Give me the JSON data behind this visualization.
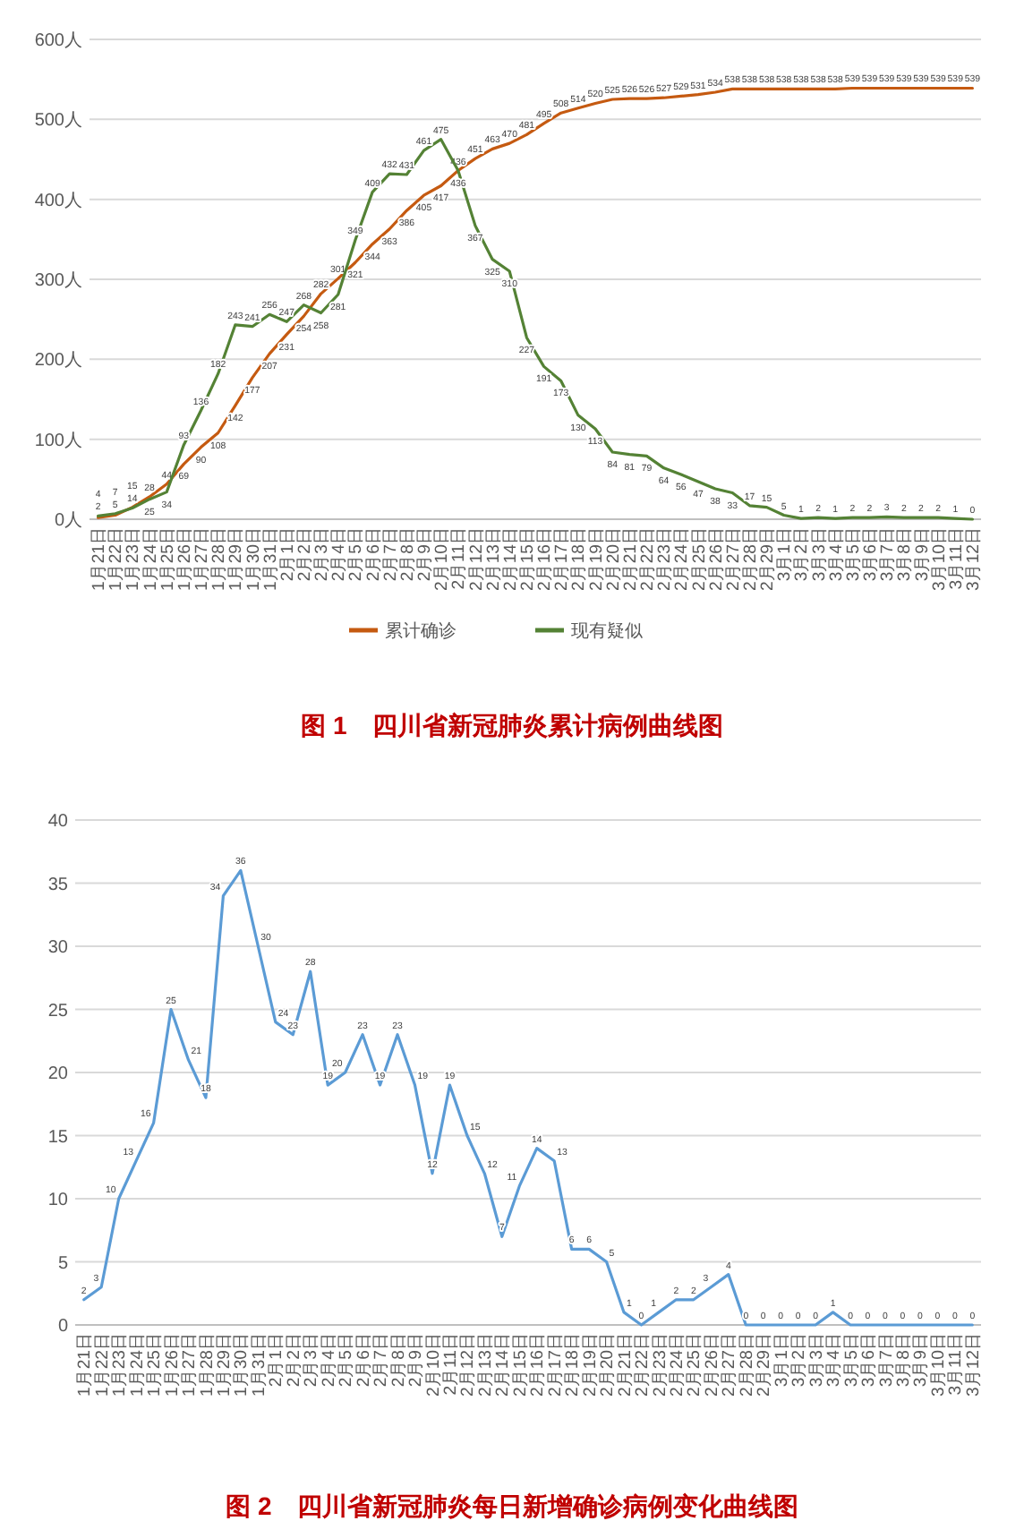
{
  "chart_data": [
    {
      "type": "line",
      "title": "图 1　四川省新冠肺炎累计病例曲线图",
      "categories": [
        "1月21日",
        "1月22日",
        "1月23日",
        "1月24日",
        "1月25日",
        "1月26日",
        "1月27日",
        "1月28日",
        "1月29日",
        "1月30日",
        "1月31日",
        "2月1日",
        "2月2日",
        "2月3日",
        "2月4日",
        "2月5日",
        "2月6日",
        "2月7日",
        "2月8日",
        "2月9日",
        "2月10日",
        "2月11日",
        "2月12日",
        "2月13日",
        "2月14日",
        "2月15日",
        "2月16日",
        "2月17日",
        "2月18日",
        "2月19日",
        "2月20日",
        "2月21日",
        "2月22日",
        "2月23日",
        "2月24日",
        "2月25日",
        "2月26日",
        "2月27日",
        "2月28日",
        "2月29日",
        "3月1日",
        "3月2日",
        "3月3日",
        "3月4日",
        "3月5日",
        "3月6日",
        "3月7日",
        "3月8日",
        "3月9日",
        "3月10日",
        "3月11日",
        "3月12日"
      ],
      "series": [
        {
          "name": "累计确诊",
          "color": "#c55a11",
          "values": [
            2,
            5,
            15,
            28,
            44,
            69,
            90,
            108,
            142,
            177,
            207,
            231,
            254,
            282,
            301,
            321,
            344,
            363,
            386,
            405,
            417,
            436,
            451,
            463,
            470,
            481,
            495,
            508,
            514,
            520,
            525,
            526,
            526,
            527,
            529,
            531,
            534,
            538,
            538,
            538,
            538,
            538,
            538,
            538,
            539,
            539,
            539,
            539,
            539,
            539,
            539,
            539
          ]
        },
        {
          "name": "现有疑似",
          "color": "#548235",
          "values": [
            4,
            7,
            14,
            25,
            34,
            93,
            136,
            182,
            243,
            241,
            256,
            247,
            268,
            258,
            281,
            349,
            409,
            432,
            431,
            461,
            475,
            436,
            367,
            325,
            310,
            227,
            191,
            173,
            130,
            113,
            84,
            81,
            79,
            64,
            56,
            47,
            38,
            33,
            17,
            15,
            5,
            1,
            2,
            1,
            2,
            2,
            3,
            2,
            2,
            2,
            1,
            0
          ]
        }
      ],
      "ylim": [
        0,
        600
      ],
      "yticks": [
        {
          "value": 0,
          "label": "0人"
        },
        {
          "value": 100,
          "label": "100人"
        },
        {
          "value": 200,
          "label": "200人"
        },
        {
          "value": 300,
          "label": "300人"
        },
        {
          "value": 400,
          "label": "400人"
        },
        {
          "value": 500,
          "label": "500人"
        },
        {
          "value": 600,
          "label": "600人"
        }
      ],
      "grid": "y",
      "legend": "bottom",
      "data_labels": true
    },
    {
      "type": "line",
      "title": "图 2　四川省新冠肺炎每日新增确诊病例变化曲线图",
      "categories": [
        "1月21日",
        "1月22日",
        "1月23日",
        "1月24日",
        "1月25日",
        "1月26日",
        "1月27日",
        "1月28日",
        "1月29日",
        "1月30日",
        "1月31日",
        "2月1日",
        "2月2日",
        "2月3日",
        "2月4日",
        "2月5日",
        "2月6日",
        "2月7日",
        "2月8日",
        "2月9日",
        "2月10日",
        "2月11日",
        "2月12日",
        "2月13日",
        "2月14日",
        "2月15日",
        "2月16日",
        "2月17日",
        "2月18日",
        "2月19日",
        "2月20日",
        "2月21日",
        "2月22日",
        "2月23日",
        "2月24日",
        "2月25日",
        "2月26日",
        "2月27日",
        "2月28日",
        "2月29日",
        "3月1日",
        "3月2日",
        "3月3日",
        "3月4日",
        "3月5日",
        "3月6日",
        "3月7日",
        "3月8日",
        "3月9日",
        "3月10日",
        "3月11日",
        "3月12日"
      ],
      "series": [
        {
          "color": "#5b9bd5",
          "values": [
            2,
            3,
            10,
            13,
            16,
            25,
            21,
            18,
            34,
            36,
            30,
            24,
            23,
            28,
            19,
            20,
            23,
            19,
            23,
            19,
            12,
            19,
            15,
            12,
            7,
            11,
            14,
            13,
            6,
            6,
            5,
            1,
            0,
            1,
            2,
            2,
            3,
            4,
            0,
            0,
            0,
            0,
            0,
            1,
            0,
            0,
            0,
            0,
            0,
            0,
            0,
            0
          ]
        }
      ],
      "ylim": [
        0,
        40
      ],
      "yticks": [
        0,
        5,
        10,
        15,
        20,
        25,
        30,
        35,
        40
      ],
      "grid": "y",
      "data_labels": true
    }
  ]
}
